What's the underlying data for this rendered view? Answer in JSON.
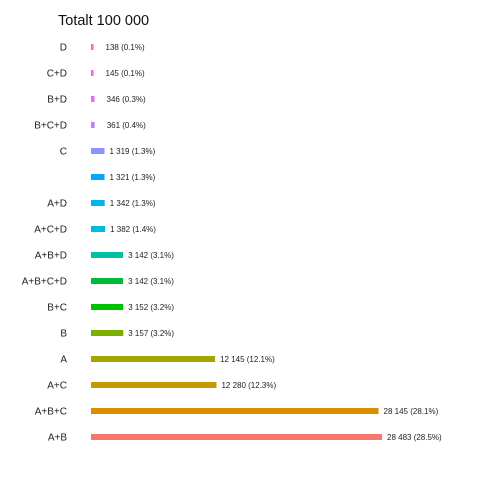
{
  "chart_data": {
    "type": "bar",
    "orientation": "horizontal",
    "title": "Totalt  100 000",
    "xlabel": "",
    "ylabel": "",
    "grid": false,
    "legend": "none",
    "xlim": [
      0,
      29500
    ],
    "categories": [
      "D",
      "C+D",
      "B+D",
      "B+C+D",
      "C",
      "",
      "A+D",
      "A+C+D",
      "A+B+D",
      "A+B+C+D",
      "B+C",
      "B",
      "A",
      "A+C",
      "A+B+C",
      "A+B"
    ],
    "values": [
      138,
      145,
      346,
      361,
      1319,
      1321,
      1342,
      1382,
      3142,
      3142,
      3152,
      3157,
      12145,
      12280,
      28145,
      28483
    ],
    "value_labels": [
      "138 (0.1%)",
      "145 (0.1%)",
      "346 (0.3%)",
      "361 (0.4%)",
      "1 319 (1.3%)",
      "1 321 (1.3%)",
      "1 342 (1.3%)",
      "1 382 (1.4%)",
      "3 142 (3.1%)",
      "3 142 (3.1%)",
      "3 152 (3.2%)",
      "3 157 (3.2%)",
      "12 145 (12.1%)",
      "12 280 (12.3%)",
      "28 145 (28.1%)",
      "28 483 (28.5%)"
    ],
    "colors": [
      "#FF61C3",
      "#F564E3",
      "#DB72FB",
      "#B983FF",
      "#8B93FF",
      "#00A9FF",
      "#00B4EF",
      "#00BCD8",
      "#00C1A3",
      "#00BA38",
      "#00C000",
      "#7CAE00",
      "#A3A500",
      "#C49A00",
      "#D89000",
      "#F8766D"
    ]
  }
}
